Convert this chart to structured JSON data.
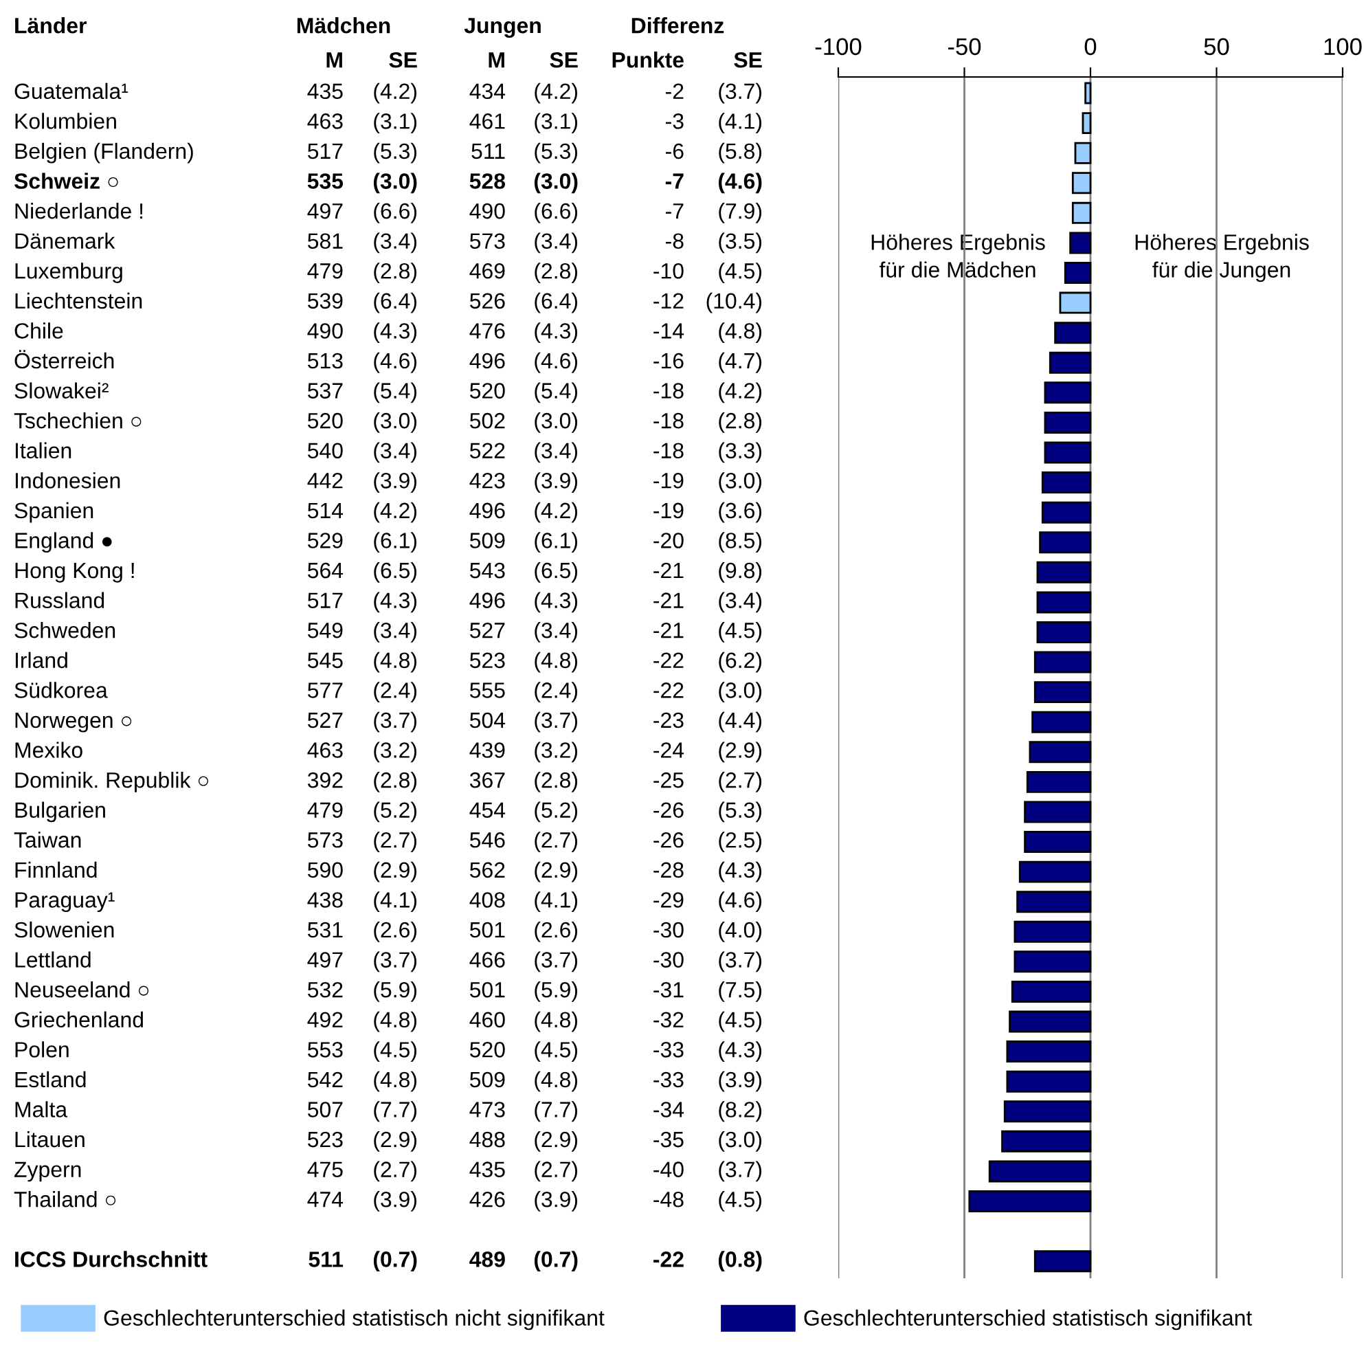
{
  "chart_data": {
    "type": "bar",
    "orientation": "horizontal",
    "ylabel": "Länder",
    "categories": [
      "Guatemala¹",
      "Kolumbien",
      "Belgien (Flandern)",
      "Schweiz ○",
      "Niederlande !",
      "Dänemark",
      "Luxemburg",
      "Liechtenstein",
      "Chile",
      "Österreich",
      "Slowakei²",
      "Tschechien ○",
      "Italien",
      "Indonesien",
      "Spanien",
      "England ●",
      "Hong Kong !",
      "Russland",
      "Schweden",
      "Irland",
      "Südkorea",
      "Norwegen ○",
      "Mexiko",
      "Dominik. Republik ○",
      "Bulgarien",
      "Taiwan",
      "Finnland",
      "Paraguay¹",
      "Slowenien",
      "Lettland",
      "Neuseeland ○",
      "Griechenland",
      "Polen",
      "Estland",
      "Malta",
      "Litauen",
      "Zypern",
      "Thailand ○",
      null,
      "ICCS Durchschnitt"
    ],
    "series": [
      {
        "name": "Geschlechterunterschied statistisch nicht signifikant",
        "color": "#99ccff",
        "axis": "x2",
        "values": [
          -2,
          -3,
          -6,
          -7,
          -7,
          null,
          null,
          -12,
          null,
          null,
          null,
          null,
          null,
          null,
          null,
          null,
          null,
          null,
          null,
          null,
          null,
          null,
          null,
          null,
          null,
          null,
          null,
          null,
          null,
          null,
          null,
          null,
          null,
          null,
          null,
          null,
          null,
          null,
          null,
          null
        ]
      },
      {
        "name": "Geschlechterunterschied statistisch signifikant",
        "color": "#000080",
        "axis": "x2",
        "values": [
          null,
          null,
          null,
          null,
          null,
          -8,
          -10,
          null,
          -14,
          -16,
          -18,
          -18,
          -18,
          -19,
          -19,
          -20,
          -21,
          -21,
          -21,
          -22,
          -22,
          -23,
          -24,
          -25,
          -26,
          -26,
          -28,
          -29,
          -30,
          -30,
          -31,
          -32,
          -33,
          -33,
          -34,
          -35,
          -40,
          -48,
          null,
          -22
        ]
      }
    ],
    "x2lim": [
      -100,
      100
    ],
    "x2ticks": [
      -100,
      -50,
      0,
      50,
      100
    ],
    "grid": "x",
    "legend": "bottom",
    "annotations": [
      "Mädchen",
      "Jungen",
      "Differenz",
      "M",
      "SE",
      "M",
      "SE",
      "Punkte",
      "SE",
      "435",
      "(4.2)",
      "434",
      "(4.2)",
      "-2",
      "(3.7)",
      "463",
      "(3.1)",
      "461",
      "(3.1)",
      "-3",
      "(4.1)",
      "517",
      "(5.3)",
      "511",
      "(5.3)",
      "-6",
      "(5.8)",
      "535",
      "(3.0)",
      "528",
      "(3.0)",
      "-7",
      "(4.6)",
      "497",
      "(6.6)",
      "490",
      "(6.6)",
      "-7",
      "(7.9)",
      "581",
      "(3.4)",
      "573",
      "(3.4)",
      "-8",
      "(3.5)",
      "479",
      "(2.8)",
      "469",
      "(2.8)",
      "-10",
      "(4.5)",
      "539",
      "(6.4)",
      "526",
      "(6.4)",
      "-12",
      "(10.4)",
      "490",
      "(4.3)",
      "476",
      "(4.3)",
      "-14",
      "(4.8)",
      "513",
      "(4.6)",
      "496",
      "(4.6)",
      "-16",
      "(4.7)",
      "537",
      "(5.4)",
      "520",
      "(5.4)",
      "-18",
      "(4.2)",
      "520",
      "(3.0)",
      "502",
      "(3.0)",
      "-18",
      "(2.8)",
      "540",
      "(3.4)",
      "522",
      "(3.4)",
      "-18",
      "(3.3)",
      "442",
      "(3.9)",
      "423",
      "(3.9)",
      "-19",
      "(3.0)",
      "514",
      "(4.2)",
      "496",
      "(4.2)",
      "-19",
      "(3.6)",
      "529",
      "(6.1)",
      "509",
      "(6.1)",
      "-20",
      "(8.5)",
      "564",
      "(6.5)",
      "543",
      "(6.5)",
      "-21",
      "(9.8)",
      "517",
      "(4.3)",
      "496",
      "(4.3)",
      "-21",
      "(3.4)",
      "549",
      "(3.4)",
      "527",
      "(3.4)",
      "-21",
      "(4.5)",
      "545",
      "(4.8)",
      "523",
      "(4.8)",
      "-22",
      "(6.2)",
      "577",
      "(2.4)",
      "555",
      "(2.4)",
      "-22",
      "(3.0)",
      "527",
      "(3.7)",
      "504",
      "(3.7)",
      "-23",
      "(4.4)",
      "463",
      "(3.2)",
      "439",
      "(3.2)",
      "-24",
      "(2.9)",
      "392",
      "(2.8)",
      "367",
      "(2.8)",
      "-25",
      "(2.7)",
      "479",
      "(5.2)",
      "454",
      "(5.2)",
      "-26",
      "(5.3)",
      "573",
      "(2.7)",
      "546",
      "(2.7)",
      "-26",
      "(2.5)",
      "590",
      "(2.9)",
      "562",
      "(2.9)",
      "-28",
      "(4.3)",
      "438",
      "(4.1)",
      "408",
      "(4.1)",
      "-29",
      "(4.6)",
      "531",
      "(2.6)",
      "501",
      "(2.6)",
      "-30",
      "(4.0)",
      "497",
      "(3.7)",
      "466",
      "(3.7)",
      "-30",
      "(3.7)",
      "532",
      "(5.9)",
      "501",
      "(5.9)",
      "-31",
      "(7.5)",
      "492",
      "(4.8)",
      "460",
      "(4.8)",
      "-32",
      "(4.5)",
      "553",
      "(4.5)",
      "520",
      "(4.5)",
      "-33",
      "(4.3)",
      "542",
      "(4.8)",
      "509",
      "(4.8)",
      "-33",
      "(3.9)",
      "507",
      "(7.7)",
      "473",
      "(7.7)",
      "-34",
      "(8.2)",
      "523",
      "(2.9)",
      "488",
      "(2.9)",
      "-35",
      "(3.0)",
      "475",
      "(2.7)",
      "435",
      "(2.7)",
      "-40",
      "(3.7)",
      "474",
      "(3.9)",
      "426",
      "(3.9)",
      "-48",
      "(4.5)",
      "511",
      "(0.7)",
      "489",
      "(0.7)",
      "-22",
      "(0.8)",
      "Höheres Ergebnis\nfür die Mädchen",
      "Höheres Ergebnis\nfür die Jungen"
    ]
  }
}
